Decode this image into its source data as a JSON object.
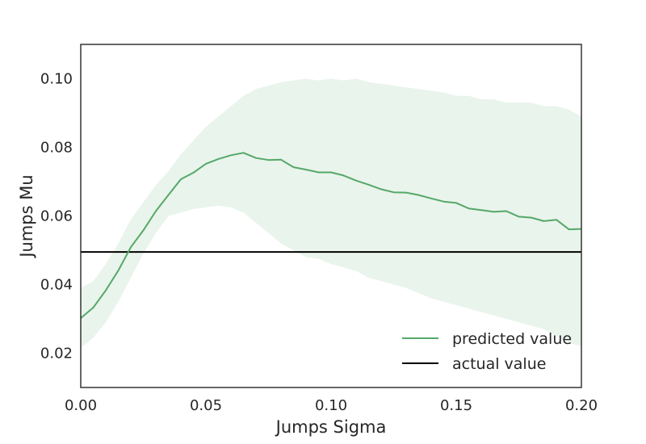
{
  "chart_data": {
    "type": "line",
    "title": "",
    "xlabel": "Jumps Sigma",
    "ylabel": "Jumps Mu",
    "xlim": [
      0.0,
      0.2
    ],
    "ylim": [
      0.01,
      0.11
    ],
    "xticks": [
      "0.00",
      "0.05",
      "0.10",
      "0.15",
      "0.20"
    ],
    "yticks": [
      "0.02",
      "0.04",
      "0.06",
      "0.08",
      "0.10"
    ],
    "grid": false,
    "legend_position": "bottom-right",
    "colors": {
      "predicted": "#55a868",
      "band": "#e9f4ec",
      "actual": "#000000"
    },
    "series": [
      {
        "name": "predicted value",
        "x": [
          0.0,
          0.005,
          0.01,
          0.015,
          0.02,
          0.025,
          0.03,
          0.035,
          0.04,
          0.045,
          0.05,
          0.055,
          0.06,
          0.065,
          0.07,
          0.075,
          0.08,
          0.085,
          0.09,
          0.095,
          0.1,
          0.105,
          0.11,
          0.115,
          0.12,
          0.125,
          0.13,
          0.135,
          0.14,
          0.145,
          0.15,
          0.155,
          0.16,
          0.165,
          0.17,
          0.175,
          0.18,
          0.185,
          0.19,
          0.195,
          0.2
        ],
        "y": [
          0.0302,
          0.0333,
          0.0383,
          0.0441,
          0.0509,
          0.0558,
          0.0614,
          0.0661,
          0.0707,
          0.0726,
          0.0752,
          0.0766,
          0.0777,
          0.0784,
          0.0769,
          0.0763,
          0.0764,
          0.0742,
          0.0735,
          0.0727,
          0.0727,
          0.0718,
          0.0703,
          0.0691,
          0.0678,
          0.0669,
          0.0668,
          0.0661,
          0.0651,
          0.0642,
          0.0638,
          0.0622,
          0.0617,
          0.0612,
          0.0614,
          0.0598,
          0.0595,
          0.0585,
          0.0589,
          0.0561,
          0.0562
        ],
        "band_lower": [
          0.0215,
          0.0245,
          0.029,
          0.035,
          0.042,
          0.049,
          0.055,
          0.06,
          0.061,
          0.062,
          0.0625,
          0.063,
          0.0625,
          0.061,
          0.058,
          0.055,
          0.052,
          0.05,
          0.048,
          0.0475,
          0.046,
          0.045,
          0.044,
          0.042,
          0.041,
          0.04,
          0.039,
          0.0375,
          0.036,
          0.035,
          0.034,
          0.033,
          0.032,
          0.031,
          0.03,
          0.029,
          0.028,
          0.027,
          0.025,
          0.023,
          0.022
        ],
        "band_upper": [
          0.039,
          0.041,
          0.046,
          0.052,
          0.059,
          0.064,
          0.069,
          0.073,
          0.078,
          0.082,
          0.086,
          0.089,
          0.092,
          0.095,
          0.097,
          0.098,
          0.099,
          0.0995,
          0.1,
          0.0995,
          0.1,
          0.0995,
          0.1,
          0.099,
          0.0985,
          0.098,
          0.0975,
          0.097,
          0.0965,
          0.096,
          0.095,
          0.095,
          0.094,
          0.094,
          0.093,
          0.093,
          0.093,
          0.092,
          0.092,
          0.091,
          0.089
        ]
      },
      {
        "name": "actual value",
        "y_constant": 0.0495
      }
    ]
  }
}
